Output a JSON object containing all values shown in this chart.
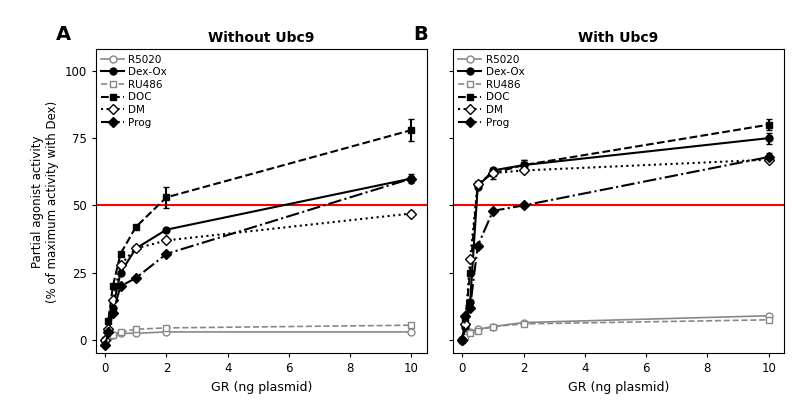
{
  "panel_A": {
    "title": "Without Ubc9",
    "label": "A",
    "series": {
      "R5020": {
        "x": [
          0.0,
          0.1,
          0.25,
          0.5,
          1.0,
          2.0,
          10.0
        ],
        "y": [
          0.0,
          1.5,
          2.0,
          2.5,
          2.5,
          3.0,
          3.0
        ],
        "yerr": [
          0,
          0,
          0,
          0,
          0,
          0,
          0.5
        ],
        "color": "#888888",
        "linestyle": "-",
        "marker": "o",
        "markerfill": "none",
        "linewidth": 1.2
      },
      "Dex-Ox": {
        "x": [
          0.0,
          0.1,
          0.25,
          0.5,
          1.0,
          2.0,
          10.0
        ],
        "y": [
          0.0,
          3.0,
          12.0,
          25.0,
          34.0,
          41.0,
          60.0
        ],
        "yerr": [
          0,
          0,
          0,
          0,
          0,
          0,
          1.5
        ],
        "color": "#000000",
        "linestyle": "-",
        "marker": "o",
        "markerfill": "full",
        "linewidth": 1.5
      },
      "RU486": {
        "x": [
          0.0,
          0.1,
          0.25,
          0.5,
          1.0,
          2.0,
          10.0
        ],
        "y": [
          0.0,
          1.0,
          2.0,
          3.0,
          4.0,
          4.5,
          5.5
        ],
        "yerr": [
          0,
          0,
          0,
          0,
          0,
          0.5,
          0.5
        ],
        "color": "#888888",
        "linestyle": "--",
        "marker": "s",
        "markerfill": "none",
        "linewidth": 1.2
      },
      "DOC": {
        "x": [
          0.0,
          0.1,
          0.25,
          0.5,
          1.0,
          2.0,
          10.0
        ],
        "y": [
          0.0,
          7.0,
          20.0,
          32.0,
          42.0,
          53.0,
          78.0
        ],
        "yerr": [
          0,
          0,
          0,
          0,
          0,
          4.0,
          4.0
        ],
        "color": "#000000",
        "linestyle": "--",
        "marker": "s",
        "markerfill": "full",
        "linewidth": 1.5
      },
      "DM": {
        "x": [
          0.0,
          0.1,
          0.25,
          0.5,
          1.0,
          2.0,
          10.0
        ],
        "y": [
          0.0,
          4.0,
          15.0,
          28.0,
          34.0,
          37.0,
          47.0
        ],
        "yerr": [
          0,
          0,
          0,
          0,
          0,
          0,
          1.0
        ],
        "color": "#000000",
        "linestyle": ":",
        "marker": "D",
        "markerfill": "none",
        "linewidth": 1.5
      },
      "Prog": {
        "x": [
          0.0,
          0.1,
          0.25,
          0.5,
          1.0,
          2.0,
          10.0
        ],
        "y": [
          -2.0,
          3.0,
          10.0,
          20.0,
          23.0,
          32.0,
          60.0
        ],
        "yerr": [
          0,
          0,
          0,
          0,
          0,
          0,
          1.0
        ],
        "color": "#000000",
        "linestyle": "-.",
        "marker": "D",
        "markerfill": "full",
        "linewidth": 1.5
      }
    }
  },
  "panel_B": {
    "title": "With Ubc9",
    "label": "B",
    "series": {
      "R5020": {
        "x": [
          0.0,
          0.1,
          0.25,
          0.5,
          1.0,
          2.0,
          10.0
        ],
        "y": [
          0.0,
          2.0,
          3.0,
          4.0,
          5.0,
          6.5,
          9.0
        ],
        "yerr": [
          0,
          0,
          0,
          0,
          0,
          0,
          0.5
        ],
        "color": "#888888",
        "linestyle": "-",
        "marker": "o",
        "markerfill": "none",
        "linewidth": 1.2
      },
      "Dex-Ox": {
        "x": [
          0.0,
          0.1,
          0.25,
          0.5,
          1.0,
          2.0,
          10.0
        ],
        "y": [
          0.0,
          5.0,
          14.0,
          57.0,
          63.0,
          65.0,
          75.0
        ],
        "yerr": [
          0,
          0,
          0,
          0,
          0,
          2.0,
          2.0
        ],
        "color": "#000000",
        "linestyle": "-",
        "marker": "o",
        "markerfill": "full",
        "linewidth": 1.5
      },
      "RU486": {
        "x": [
          0.0,
          0.1,
          0.25,
          0.5,
          1.0,
          2.0,
          10.0
        ],
        "y": [
          0.0,
          1.0,
          2.5,
          3.5,
          5.0,
          6.0,
          7.5
        ],
        "yerr": [
          0,
          0,
          0,
          0,
          0,
          0,
          0.5
        ],
        "color": "#888888",
        "linestyle": "--",
        "marker": "s",
        "markerfill": "none",
        "linewidth": 1.2
      },
      "DOC": {
        "x": [
          0.0,
          0.1,
          0.25,
          0.5,
          1.0,
          2.0,
          10.0
        ],
        "y": [
          0.0,
          8.0,
          25.0,
          58.0,
          62.0,
          65.0,
          80.0
        ],
        "yerr": [
          0,
          0,
          0,
          0,
          2.0,
          2.0,
          2.0
        ],
        "color": "#000000",
        "linestyle": "--",
        "marker": "s",
        "markerfill": "full",
        "linewidth": 1.5
      },
      "DM": {
        "x": [
          0.0,
          0.1,
          0.25,
          0.5,
          1.0,
          2.0,
          10.0
        ],
        "y": [
          0.0,
          6.0,
          30.0,
          58.0,
          62.0,
          63.0,
          67.0
        ],
        "yerr": [
          0,
          0,
          0,
          0,
          0,
          0,
          1.0
        ],
        "color": "#000000",
        "linestyle": ":",
        "marker": "D",
        "markerfill": "none",
        "linewidth": 1.5
      },
      "Prog": {
        "x": [
          0.0,
          0.1,
          0.25,
          0.5,
          1.0,
          2.0,
          10.0
        ],
        "y": [
          0.0,
          9.0,
          12.0,
          35.0,
          48.0,
          50.0,
          68.0
        ],
        "yerr": [
          0,
          0,
          0,
          0,
          0,
          0,
          1.5
        ],
        "color": "#000000",
        "linestyle": "-.",
        "marker": "D",
        "markerfill": "full",
        "linewidth": 1.5
      }
    }
  },
  "ylabel": "Partial agonist activity\n(% of maximum activity with Dex)",
  "xlabel": "GR (ng plasmid)",
  "ylim": [
    -5,
    108
  ],
  "yticks": [
    0,
    25,
    50,
    75,
    100
  ],
  "xticks": [
    0,
    2,
    4,
    6,
    8,
    10
  ],
  "hline_y": 50,
  "hline_color": "#ff0000",
  "legend_order": [
    "R5020",
    "Dex-Ox",
    "RU486",
    "DOC",
    "DM",
    "Prog"
  ],
  "marker_size": 5
}
